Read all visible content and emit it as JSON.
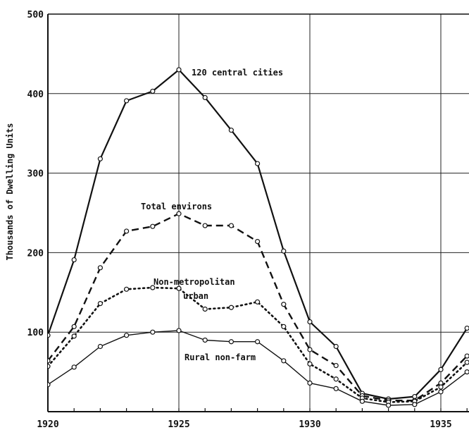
{
  "chart_data": {
    "type": "line",
    "ylabel": "Thousands of Dwelling Units",
    "xlabel": "",
    "x": [
      1920,
      1921,
      1922,
      1923,
      1924,
      1925,
      1926,
      1927,
      1928,
      1929,
      1930,
      1931,
      1932,
      1933,
      1934,
      1935,
      1936
    ],
    "xticks": [
      1920,
      1925,
      1930,
      1935
    ],
    "yticks": [
      100,
      200,
      300,
      400,
      500
    ],
    "xlim": [
      1920,
      1936
    ],
    "ylim": [
      0,
      500
    ],
    "grid": true,
    "series": [
      {
        "name": "120 central cities",
        "style": "solid-heavy",
        "values": [
          96,
          191,
          318,
          391,
          403,
          430,
          395,
          354,
          312,
          202,
          113,
          82,
          23,
          16,
          19,
          53,
          105
        ]
      },
      {
        "name": "Total environs",
        "style": "dashed",
        "values": [
          64,
          107,
          181,
          227,
          233,
          249,
          234,
          234,
          214,
          135,
          78,
          58,
          20,
          14,
          14,
          36,
          70
        ]
      },
      {
        "name": "Non-metropolitan urban",
        "style": "dotted",
        "values": [
          57,
          95,
          136,
          154,
          156,
          155,
          129,
          131,
          138,
          107,
          60,
          41,
          17,
          12,
          13,
          31,
          62
        ]
      },
      {
        "name": "Rural non-farm",
        "style": "solid-thin",
        "values": [
          34,
          56,
          82,
          96,
          100,
          102,
          90,
          88,
          88,
          64,
          36,
          29,
          13,
          8,
          9,
          25,
          50
        ]
      }
    ],
    "annotations": [
      {
        "series": "120 central cities",
        "lines": [
          "120 central cities"
        ]
      },
      {
        "series": "Total environs",
        "lines": [
          "Total environs"
        ]
      },
      {
        "series": "Non-metropolitan urban",
        "lines": [
          "Non-metropolitan",
          "urban"
        ]
      },
      {
        "series": "Rural non-farm",
        "lines": [
          "Rural non-farm"
        ]
      }
    ]
  }
}
